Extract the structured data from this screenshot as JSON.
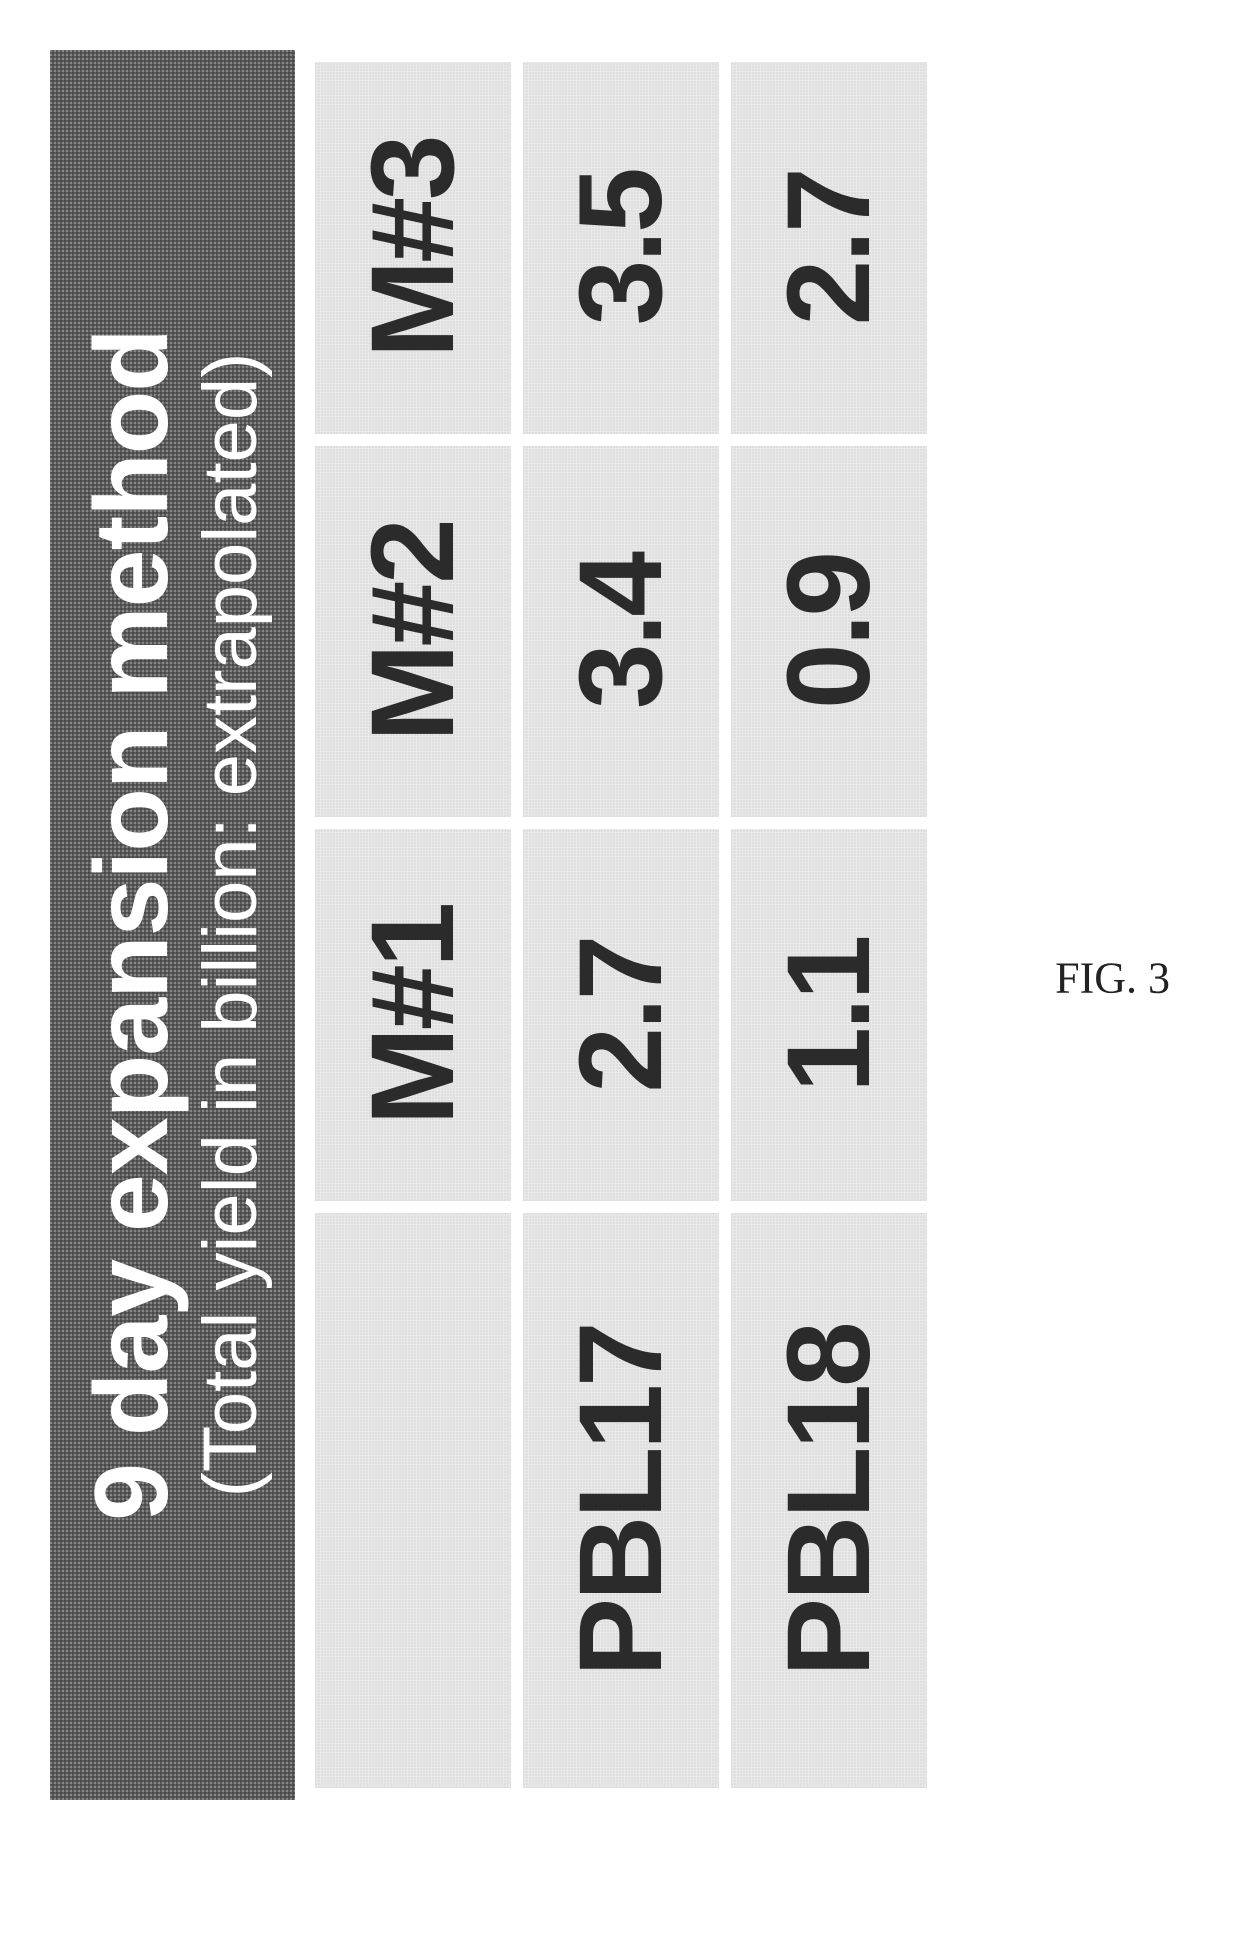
{
  "figure": {
    "title_line1": "9 day expansion method",
    "title_line2": "(Total yield in billion: extrapolated)",
    "title_bg_color": "#5a5a5a",
    "title_text_color": "#ffffff",
    "cell_bg_color": "#e8e8e8",
    "cell_text_color": "#2b2b2b",
    "title_fontsize_pt": 78,
    "subtitle_fontsize_pt": 57,
    "cell_fontsize_pt": 88,
    "columns": [
      "",
      "M#1",
      "M#2",
      "M#3"
    ],
    "rows": [
      {
        "label": "PBL17",
        "values": [
          "2.7",
          "3.4",
          "3.5"
        ]
      },
      {
        "label": "PBL18",
        "values": [
          "1.1",
          "0.9",
          "2.7"
        ]
      }
    ],
    "caption": "FIG. 3"
  }
}
